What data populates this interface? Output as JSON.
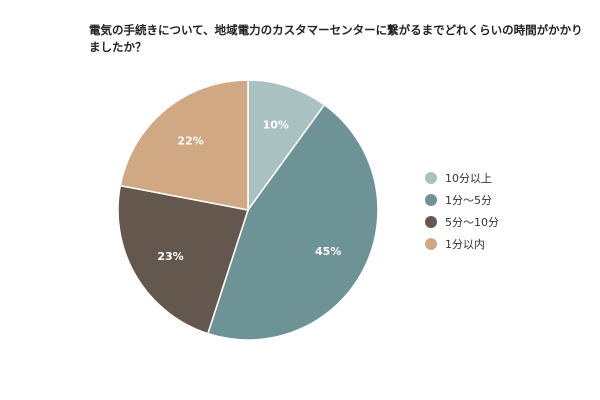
{
  "chart_data": {
    "type": "pie",
    "title": "電気の手続きについて、地域電力のカスタマーセンターに繋がるまでどれくらいの時間がかかりましたか？",
    "categories": [
      "10分以上",
      "1分～5分",
      "5分～10分",
      "1分以内"
    ],
    "values": [
      10,
      45,
      23,
      22
    ],
    "value_labels": [
      "10%",
      "45%",
      "23%",
      "22%"
    ],
    "colors": [
      "#a9c2c1",
      "#6e9396",
      "#64574d",
      "#d0a984"
    ],
    "legend_position": "right",
    "start_angle_deg": 0,
    "direction": "clockwise"
  }
}
